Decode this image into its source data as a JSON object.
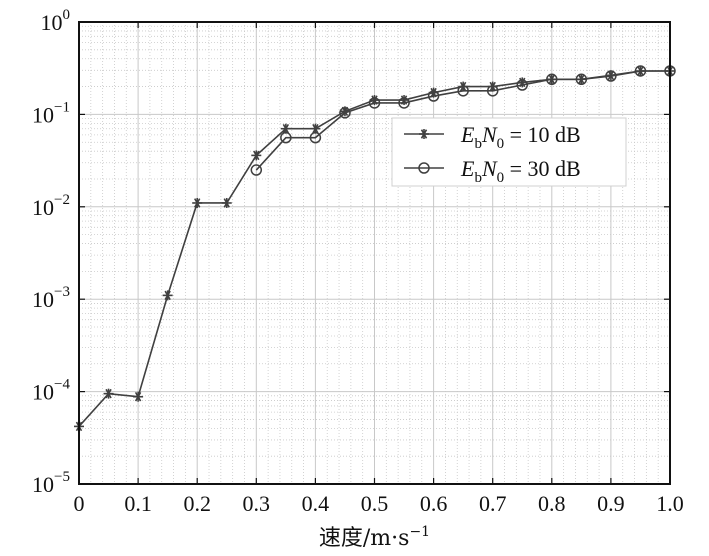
{
  "chart_data": {
    "type": "line",
    "x": [
      0,
      0.05,
      0.1,
      0.15,
      0.2,
      0.25,
      0.3,
      0.35,
      0.4,
      0.45,
      0.5,
      0.55,
      0.6,
      0.65,
      0.7,
      0.75,
      0.8,
      0.85,
      0.9,
      0.95,
      1.0
    ],
    "series": [
      {
        "name_main": "E",
        "name_sub1": "b",
        "name_mid": "N",
        "name_sub2": "0",
        "name_rest": " = 10 dB",
        "marker": "asterisk",
        "color": "#404040",
        "values": [
          4.2e-05,
          9.5e-05,
          8.8e-05,
          0.0011,
          0.011,
          0.011,
          0.036,
          0.07,
          0.07,
          0.108,
          0.143,
          0.143,
          0.172,
          0.2,
          0.2,
          0.222,
          0.24,
          0.24,
          0.265,
          0.295,
          0.295
        ]
      },
      {
        "name_main": "E",
        "name_sub1": "b",
        "name_mid": "N",
        "name_sub2": "0",
        "name_rest": " = 30 dB",
        "marker": "circle",
        "color": "#404040",
        "values": [
          null,
          null,
          null,
          null,
          null,
          null,
          0.025,
          0.056,
          0.056,
          0.104,
          0.133,
          0.133,
          0.158,
          0.18,
          0.18,
          0.208,
          0.24,
          0.24,
          0.26,
          0.295,
          0.295
        ]
      }
    ],
    "xlim": [
      0,
      1.0
    ],
    "ylim": [
      1e-05,
      1
    ],
    "yscale": "log",
    "x_ticks": [
      "0",
      "0.1",
      "0.2",
      "0.3",
      "0.4",
      "0.5",
      "0.6",
      "0.7",
      "0.8",
      "0.9",
      "1.0"
    ],
    "y_ticks": [
      {
        "base": "10",
        "exp": "−5"
      },
      {
        "base": "10",
        "exp": "−4"
      },
      {
        "base": "10",
        "exp": "−3"
      },
      {
        "base": "10",
        "exp": "−2"
      },
      {
        "base": "10",
        "exp": "−1"
      },
      {
        "base": "10",
        "exp": "0"
      }
    ],
    "xlabel_main": "速度/m·s",
    "xlabel_exp": "−1",
    "ylabel": "",
    "title": "",
    "grid": true,
    "legend_position": "upper-right"
  }
}
